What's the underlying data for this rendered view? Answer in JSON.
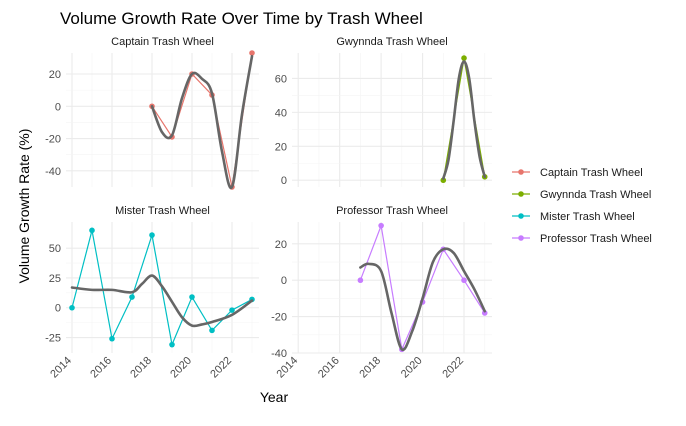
{
  "chart_data": {
    "type": "line",
    "title": "Volume Growth Rate Over Time by Trash Wheel",
    "xlabel": "Year",
    "ylabel": "Volume Growth Rate (%)",
    "legend_position": "right",
    "x_ticks": [
      "2014",
      "2016",
      "2018",
      "2020",
      "2022"
    ],
    "xlim": [
      2013.7,
      2023.35
    ],
    "series": [
      {
        "name": "Captain Trash Wheel",
        "color": "#E7756C"
      },
      {
        "name": "Gwynnda Trash Wheel",
        "color": "#7CAE00"
      },
      {
        "name": "Mister Trash Wheel",
        "color": "#00BFC4"
      },
      {
        "name": "Professor Trash Wheel",
        "color": "#C77CFF"
      }
    ],
    "panels": [
      {
        "title": "Captain Trash Wheel",
        "series": "Captain Trash Wheel",
        "ylim": [
          -50,
          33
        ],
        "y_ticks": [
          20,
          0,
          -20,
          -40
        ],
        "x": [
          2018,
          2019,
          2020,
          2021,
          2022,
          2023
        ],
        "y": [
          0,
          -19,
          20,
          7,
          -50,
          33
        ],
        "trend": [
          [
            2018,
            0
          ],
          [
            2018.5,
            -16
          ],
          [
            2019,
            -18
          ],
          [
            2019.5,
            5
          ],
          [
            2020,
            20
          ],
          [
            2020.5,
            17
          ],
          [
            2021,
            8
          ],
          [
            2021.5,
            -28
          ],
          [
            2022,
            -50
          ],
          [
            2022.5,
            -5
          ],
          [
            2023,
            31
          ]
        ]
      },
      {
        "title": "Gwynnda Trash Wheel",
        "series": "Gwynnda Trash Wheel",
        "ylim": [
          -4,
          75
        ],
        "y_ticks": [
          60,
          40,
          20,
          0
        ],
        "x": [
          2021,
          2022,
          2023
        ],
        "y": [
          0,
          72,
          2
        ],
        "trend": [
          [
            2021,
            1
          ],
          [
            2021.25,
            12
          ],
          [
            2021.5,
            35
          ],
          [
            2021.75,
            60
          ],
          [
            2022,
            70
          ],
          [
            2022.25,
            60
          ],
          [
            2022.5,
            35
          ],
          [
            2022.75,
            14
          ],
          [
            2023,
            2
          ]
        ]
      },
      {
        "title": "Mister Trash Wheel",
        "series": "Mister Trash Wheel",
        "ylim": [
          -38,
          72
        ],
        "y_ticks": [
          75,
          50,
          25,
          0,
          -25
        ],
        "x": [
          2014,
          2015,
          2016,
          2017,
          2018,
          2019,
          2020,
          2021,
          2022,
          2023
        ],
        "y": [
          0,
          65,
          -26,
          9,
          61,
          -31,
          9,
          -19,
          -2,
          7
        ],
        "trend": [
          [
            2014,
            17
          ],
          [
            2015,
            15
          ],
          [
            2016,
            15
          ],
          [
            2017,
            13
          ],
          [
            2017.5,
            20
          ],
          [
            2018,
            27
          ],
          [
            2018.5,
            18
          ],
          [
            2019,
            5
          ],
          [
            2019.5,
            -8
          ],
          [
            2020,
            -15
          ],
          [
            2020.5,
            -14
          ],
          [
            2021,
            -12
          ],
          [
            2022,
            -6
          ],
          [
            2023,
            6
          ]
        ]
      },
      {
        "title": "Professor Trash Wheel",
        "series": "Professor Trash Wheel",
        "ylim": [
          -40,
          32
        ],
        "y_ticks": [
          20,
          0,
          -20,
          -40
        ],
        "x": [
          2017,
          2018,
          2019,
          2020,
          2021,
          2022,
          2023
        ],
        "y": [
          0,
          30,
          -38,
          -12,
          17,
          0,
          -18
        ],
        "trend": [
          [
            2017,
            7
          ],
          [
            2017.4,
            9
          ],
          [
            2018,
            5
          ],
          [
            2018.5,
            -18
          ],
          [
            2019,
            -38
          ],
          [
            2019.5,
            -28
          ],
          [
            2020,
            -10
          ],
          [
            2020.5,
            10
          ],
          [
            2021,
            17
          ],
          [
            2021.5,
            15
          ],
          [
            2022,
            5
          ],
          [
            2022.5,
            -5
          ],
          [
            2023,
            -17
          ]
        ]
      }
    ]
  }
}
